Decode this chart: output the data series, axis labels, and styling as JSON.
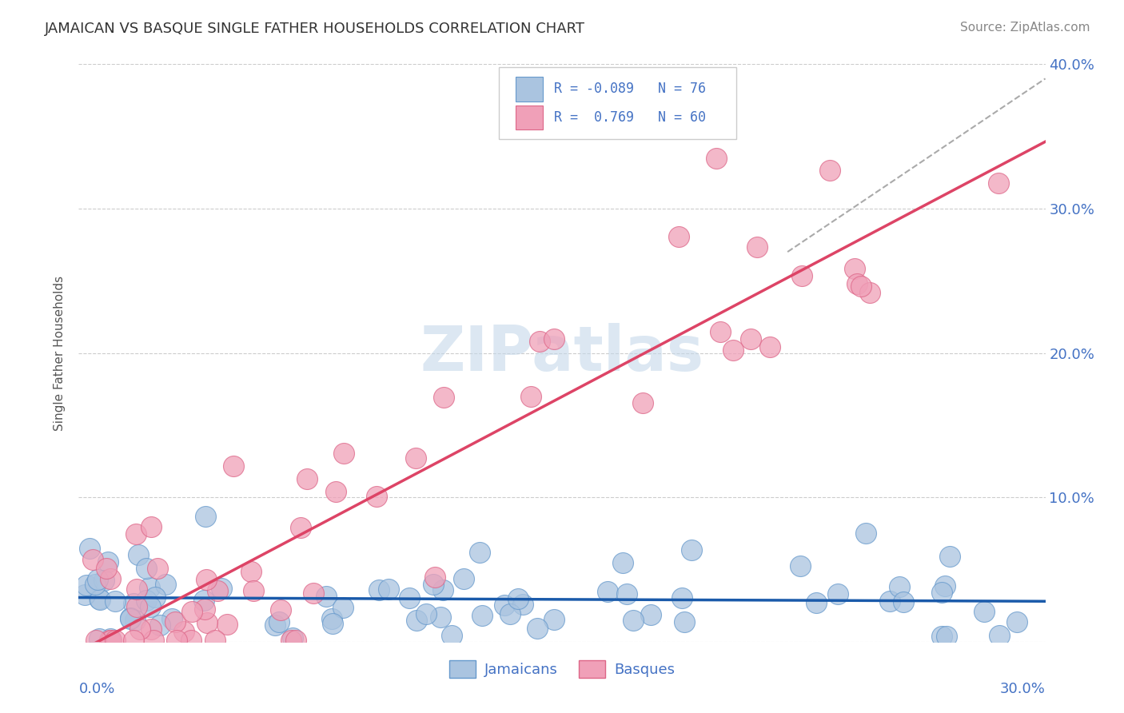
{
  "title": "JAMAICAN VS BASQUE SINGLE FATHER HOUSEHOLDS CORRELATION CHART",
  "source": "Source: ZipAtlas.com",
  "ylabel": "Single Father Households",
  "xlim": [
    0.0,
    0.3
  ],
  "ylim": [
    0.0,
    0.4
  ],
  "jamaicans_color": "#aac4e0",
  "jamaicans_edge_color": "#6699cc",
  "basques_color": "#f0a0b8",
  "basques_edge_color": "#dd6688",
  "jamaicans_line_color": "#1a5aaa",
  "basques_line_color": "#dd4466",
  "dashed_line_color": "#aaaaaa",
  "watermark_color": "#c5d8ea",
  "title_color": "#333333",
  "axis_label_color": "#4472c4",
  "background_color": "#ffffff",
  "legend_r1": "R = -0.089",
  "legend_n1": "N = 76",
  "legend_r2": "R =  0.769",
  "legend_n2": "N = 60",
  "jamaican_seed": 101,
  "basque_seed": 202
}
